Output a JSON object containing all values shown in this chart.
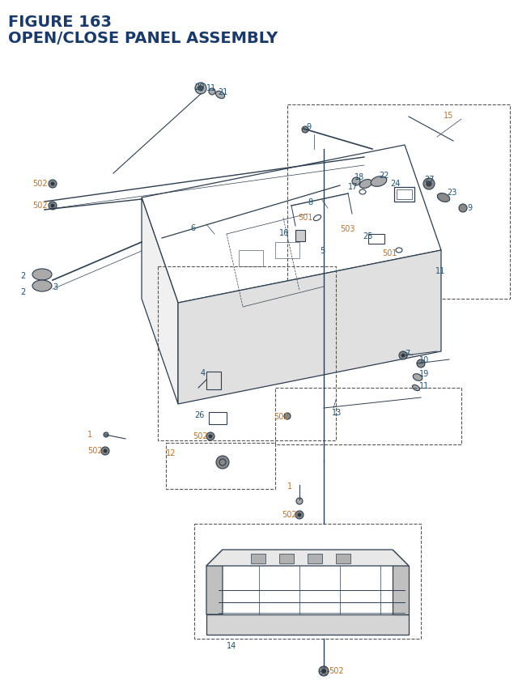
{
  "title_line1": "FIGURE 163",
  "title_line2": "OPEN/CLOSE PANEL ASSEMBLY",
  "title_color": "#1a3a6b",
  "title_fontsize": 13,
  "bg_color": "#ffffff",
  "label_color_blue": "#1a5276",
  "label_color_orange": "#c0712a",
  "label_color_dark": "#2c3e50",
  "line_color": "#2c3e50",
  "dash_box_color": "#555555",
  "figsize": [
    6.4,
    8.62
  ],
  "dpi": 100
}
